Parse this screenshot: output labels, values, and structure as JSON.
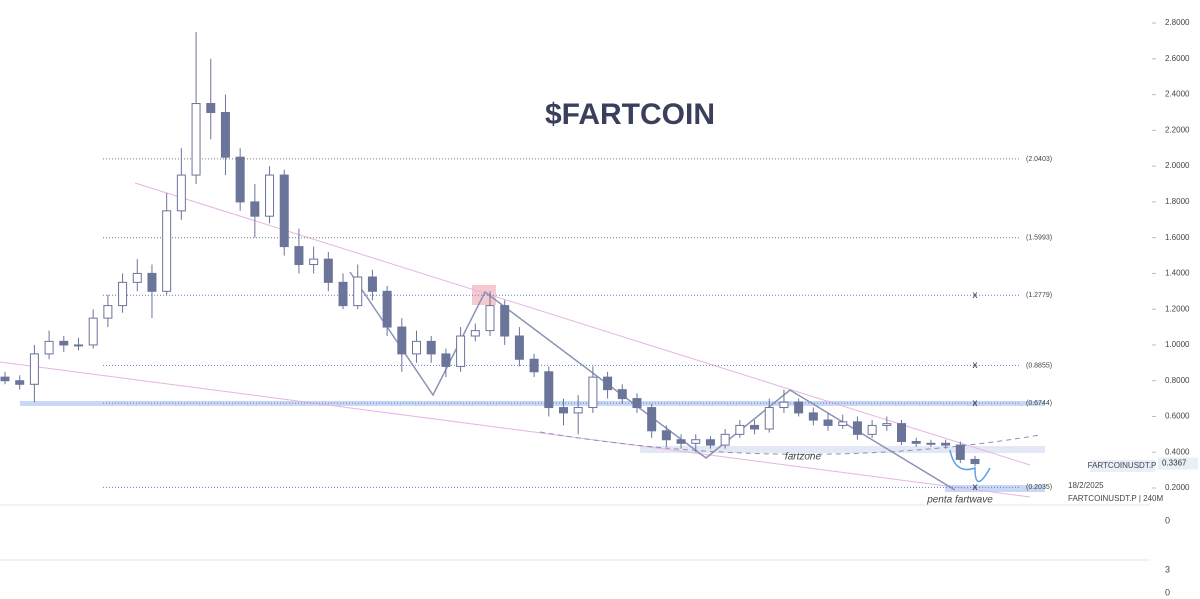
{
  "chart_data": {
    "type": "candlestick",
    "title": "$FARTCOIN",
    "symbol": "FARTCOINUSDT.P",
    "date": "18/2/2025",
    "interval_label": "FARTCOINUSDT.P | 240M",
    "last_price": {
      "value": 0.3367,
      "label": "0.3367"
    },
    "annotations": [
      "fartzone",
      "penta fartwave"
    ],
    "pane_labels": [
      "0",
      "3",
      "0"
    ],
    "color": "#6b7499",
    "ylim": [
      0.105,
      2.929
    ],
    "yticks": [
      {
        "value": 0.2,
        "label": "0.2000"
      },
      {
        "value": 0.4,
        "label": "0.4000"
      },
      {
        "value": 0.6,
        "label": "0.6000"
      },
      {
        "value": 0.8,
        "label": "0.8000"
      },
      {
        "value": 1.0,
        "label": "1.0000"
      },
      {
        "value": 1.2,
        "label": "1.2000"
      },
      {
        "value": 1.4,
        "label": "1.4000"
      },
      {
        "value": 1.6,
        "label": "1.6000"
      },
      {
        "value": 1.8,
        "label": "1.8000"
      },
      {
        "value": 2.0,
        "label": "2.0000"
      },
      {
        "value": 2.2,
        "label": "2.2000"
      },
      {
        "value": 2.4,
        "label": "2.4000"
      },
      {
        "value": 2.6,
        "label": "2.6000"
      },
      {
        "value": 2.8,
        "label": "2.8000"
      }
    ],
    "levels": [
      {
        "value": 2.0403,
        "label": "(2.0403)"
      },
      {
        "value": 1.5993,
        "label": "(1.5993)"
      },
      {
        "value": 1.2779,
        "label": "(1.2779)",
        "marker": "x"
      },
      {
        "value": 0.8855,
        "label": "(0.8855)",
        "marker": "x"
      },
      {
        "value": 0.6744,
        "label": "(0.6744)",
        "marker": "x"
      },
      {
        "value": 0.2035,
        "label": "(0.2035)",
        "marker": "x"
      }
    ],
    "open": [
      0.82,
      0.8,
      0.78,
      0.95,
      1.02,
      1.0,
      1.0,
      1.15,
      1.22,
      1.35,
      1.4,
      1.3,
      1.75,
      1.95,
      2.35,
      2.3,
      2.05,
      1.8,
      1.72,
      1.95,
      1.55,
      1.45,
      1.48,
      1.35,
      1.22,
      1.38,
      1.3,
      1.1,
      0.95,
      1.02,
      0.95,
      0.88,
      1.05,
      1.08,
      1.22,
      1.05,
      0.92,
      0.85,
      0.65,
      0.62,
      0.65,
      0.82,
      0.75,
      0.7,
      0.65,
      0.52,
      0.47,
      0.45,
      0.47,
      0.44,
      0.5,
      0.55,
      0.53,
      0.65,
      0.68,
      0.62,
      0.58,
      0.55,
      0.57,
      0.5,
      0.55,
      0.56,
      0.46,
      0.45,
      0.45,
      0.44,
      0.36
    ],
    "high": [
      0.85,
      0.83,
      1.0,
      1.08,
      1.05,
      1.04,
      1.2,
      1.28,
      1.4,
      1.48,
      1.45,
      1.85,
      2.1,
      2.75,
      2.6,
      2.4,
      2.1,
      1.9,
      2.0,
      1.98,
      1.65,
      1.55,
      1.52,
      1.4,
      1.45,
      1.42,
      1.33,
      1.15,
      1.08,
      1.05,
      0.98,
      1.1,
      1.12,
      1.3,
      1.25,
      1.1,
      0.95,
      0.88,
      0.7,
      0.72,
      0.88,
      0.85,
      0.78,
      0.73,
      0.67,
      0.55,
      0.5,
      0.5,
      0.49,
      0.53,
      0.58,
      0.58,
      0.7,
      0.75,
      0.7,
      0.65,
      0.62,
      0.61,
      0.6,
      0.58,
      0.6,
      0.58,
      0.48,
      0.47,
      0.47,
      0.46,
      0.38
    ],
    "low": [
      0.78,
      0.75,
      0.68,
      0.92,
      0.96,
      0.97,
      0.98,
      1.1,
      1.18,
      1.3,
      1.15,
      1.28,
      1.7,
      1.9,
      2.15,
      1.95,
      1.75,
      1.6,
      1.68,
      1.5,
      1.4,
      1.4,
      1.3,
      1.2,
      1.2,
      1.25,
      1.05,
      0.85,
      0.9,
      0.9,
      0.82,
      0.85,
      1.02,
      1.05,
      1.0,
      0.88,
      0.82,
      0.6,
      0.55,
      0.5,
      0.62,
      0.7,
      0.67,
      0.62,
      0.48,
      0.43,
      0.42,
      0.4,
      0.42,
      0.42,
      0.48,
      0.5,
      0.51,
      0.62,
      0.6,
      0.55,
      0.52,
      0.53,
      0.47,
      0.48,
      0.52,
      0.44,
      0.43,
      0.43,
      0.42,
      0.34,
      0.32
    ],
    "close": [
      0.8,
      0.78,
      0.95,
      1.02,
      1.0,
      1.0,
      1.15,
      1.22,
      1.35,
      1.4,
      1.3,
      1.75,
      1.95,
      2.35,
      2.3,
      2.05,
      1.8,
      1.72,
      1.95,
      1.55,
      1.45,
      1.48,
      1.35,
      1.22,
      1.38,
      1.3,
      1.1,
      0.95,
      1.02,
      0.95,
      0.88,
      1.05,
      1.08,
      1.22,
      1.05,
      0.92,
      0.85,
      0.65,
      0.62,
      0.65,
      0.82,
      0.75,
      0.7,
      0.65,
      0.52,
      0.47,
      0.45,
      0.47,
      0.44,
      0.5,
      0.55,
      0.53,
      0.65,
      0.68,
      0.62,
      0.58,
      0.55,
      0.57,
      0.5,
      0.55,
      0.56,
      0.46,
      0.45,
      0.45,
      0.44,
      0.36,
      0.3367
    ]
  }
}
